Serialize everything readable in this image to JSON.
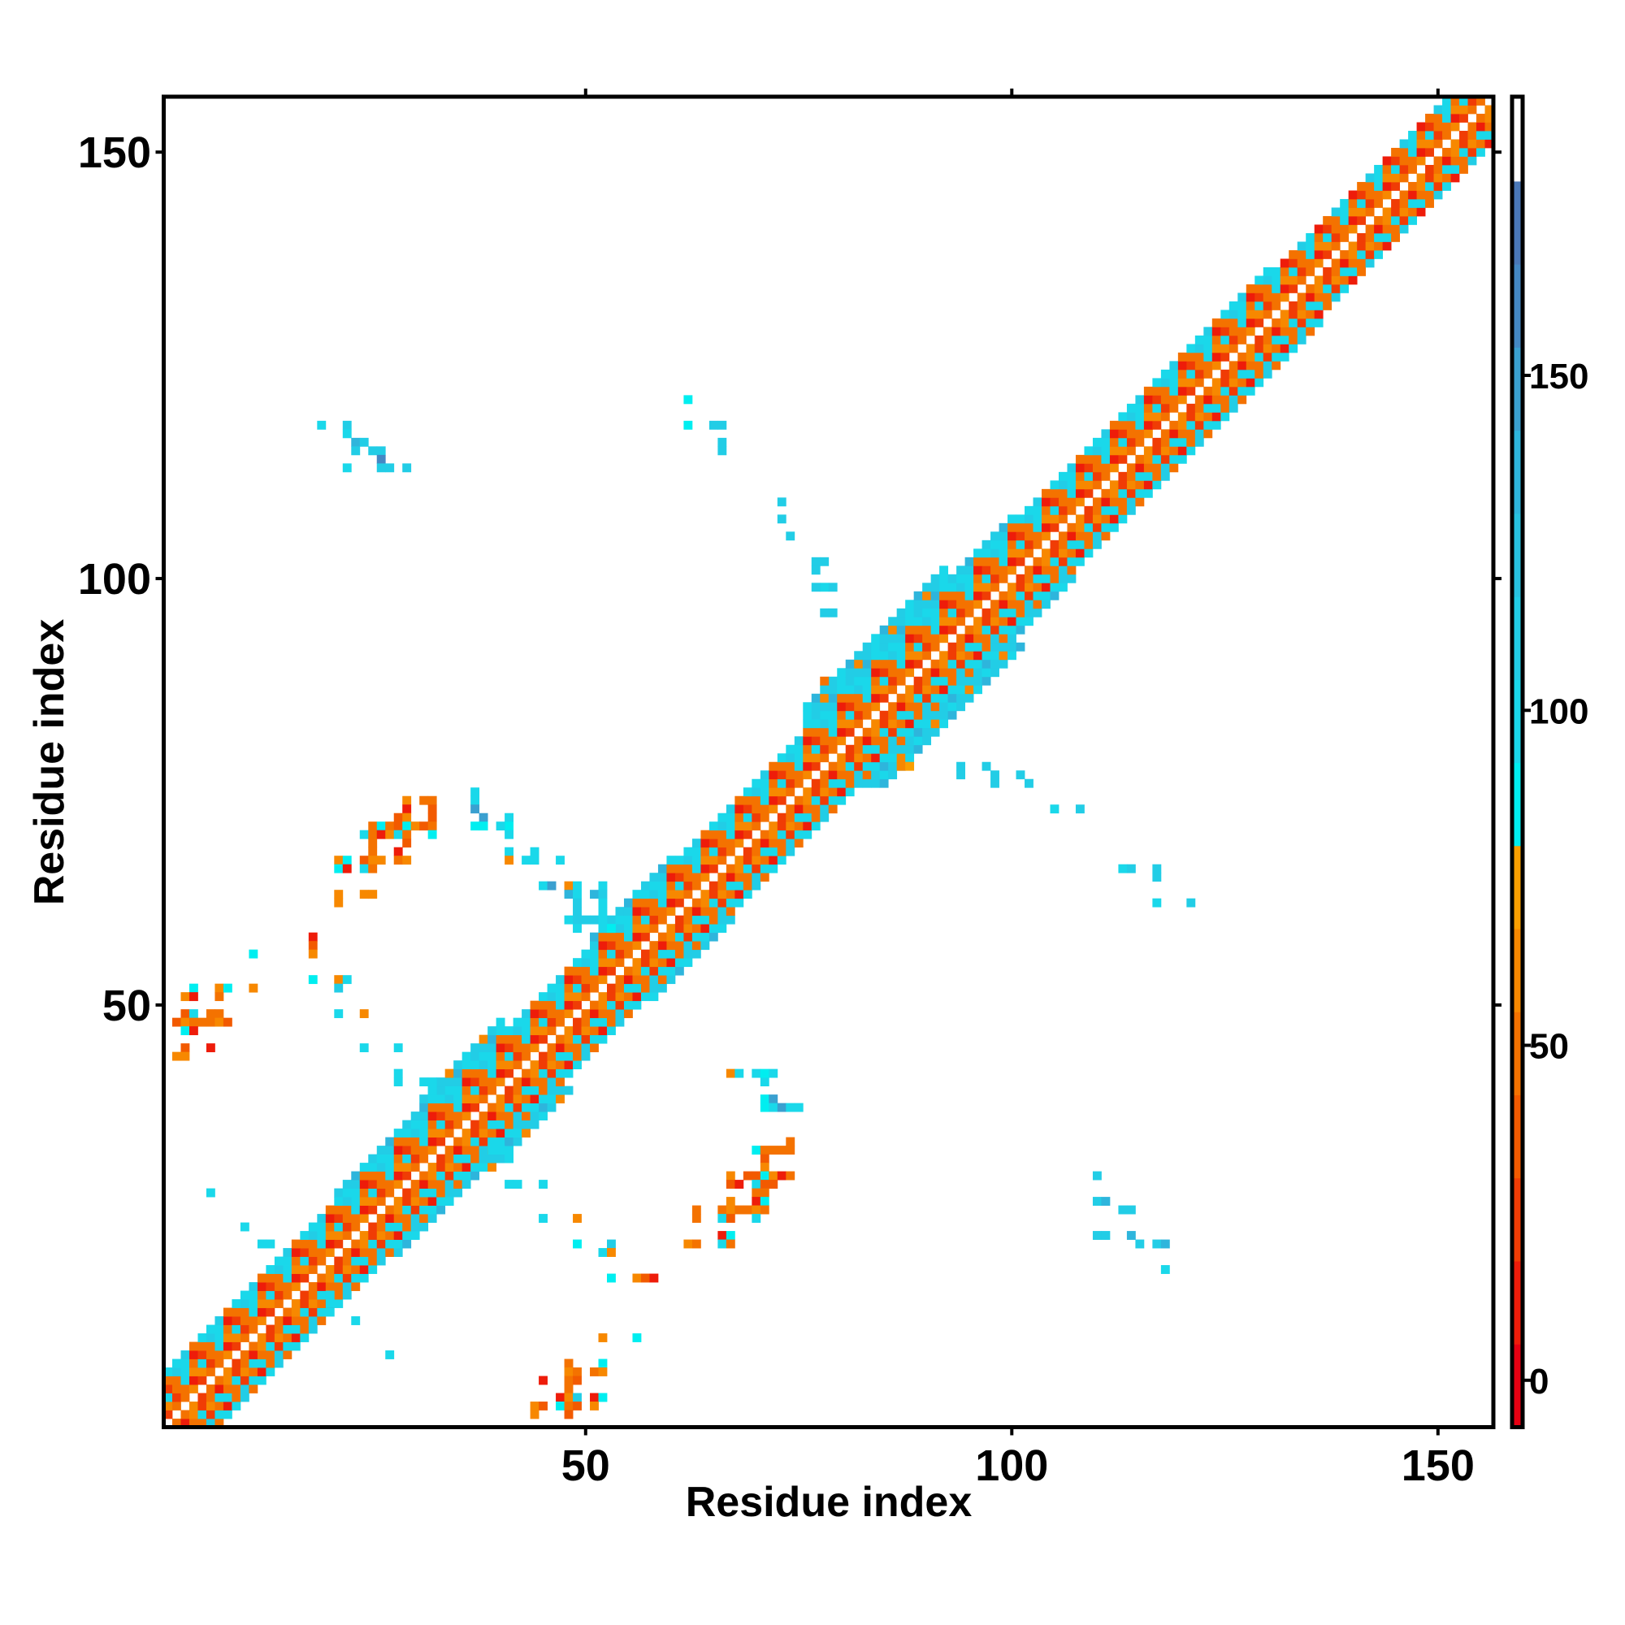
{
  "chart_data": {
    "type": "heatmap",
    "title": "",
    "xlabel": "Residue index",
    "ylabel": "Residue index",
    "xlim": [
      0.5,
      156.5
    ],
    "ylim": [
      0.5,
      156.5
    ],
    "x_ticks": [
      {
        "value": 50,
        "label": "50"
      },
      {
        "value": 100,
        "label": "100"
      },
      {
        "value": 150,
        "label": "150"
      }
    ],
    "y_ticks": [
      {
        "value": 50,
        "label": "50"
      },
      {
        "value": 100,
        "label": "100"
      },
      {
        "value": 150,
        "label": "150"
      }
    ],
    "grid": false,
    "colorbar": {
      "range": [
        -7,
        191.6
      ],
      "bin_width": 12.4,
      "colors": [
        "#e60012",
        "#ee1c0a",
        "#f03c05",
        "#f25a00",
        "#f47200",
        "#f78800",
        "#fa9f00",
        "#00eef0",
        "#1ad8ea",
        "#22cde6",
        "#28c2e0",
        "#2eb5dc",
        "#3aa0d0",
        "#4488c4",
        "#4a78b8",
        "#ffffff"
      ],
      "ticks": [
        {
          "value": 0,
          "label": "0"
        },
        {
          "value": 50,
          "label": "50"
        },
        {
          "value": 100,
          "label": "100"
        },
        {
          "value": 150,
          "label": "150"
        }
      ],
      "placement": "right"
    },
    "n_residues": 156,
    "diagonal_band": {
      "segments": [
        [
          1,
          20,
          6
        ],
        [
          21,
          30,
          7
        ],
        [
          31,
          40,
          8
        ],
        [
          41,
          50,
          6
        ],
        [
          51,
          60,
          7
        ],
        [
          61,
          75,
          6
        ],
        [
          76,
          92,
          9
        ],
        [
          93,
          100,
          7
        ],
        [
          101,
          130,
          6
        ],
        [
          131,
          156,
          5
        ]
      ],
      "offset_values": [
        [
          45,
          60,
          30,
          45
        ],
        [
          25,
          45,
          10,
          55
        ],
        [
          95,
          45,
          100,
          65
        ],
        [
          50,
          25,
          45,
          95
        ],
        [
          100,
          15,
          50,
          110
        ],
        [
          100,
          115,
          45,
          95
        ],
        [
          105,
          110,
          140,
          95
        ],
        [
          100,
          115,
          60,
          110
        ],
        [
          110,
          95,
          140,
          110
        ]
      ]
    },
    "cells": [
      [
        19,
        118,
        95
      ],
      [
        22,
        118,
        110
      ],
      [
        22,
        117,
        95
      ],
      [
        23,
        116,
        140
      ],
      [
        24,
        116,
        110
      ],
      [
        25,
        115,
        110
      ],
      [
        26,
        115,
        110
      ],
      [
        23,
        115,
        110
      ],
      [
        26,
        114,
        165
      ],
      [
        22,
        113,
        95
      ],
      [
        26,
        113,
        110
      ],
      [
        27,
        113,
        110
      ],
      [
        29,
        113,
        110
      ],
      [
        62,
        121,
        90
      ],
      [
        62,
        118,
        90
      ],
      [
        65,
        118,
        110
      ],
      [
        66,
        118,
        110
      ],
      [
        66,
        116,
        110
      ],
      [
        66,
        115,
        110
      ],
      [
        73,
        109,
        110
      ],
      [
        73,
        107,
        110
      ],
      [
        74,
        105,
        110
      ],
      [
        77,
        102,
        110
      ],
      [
        78,
        102,
        110
      ],
      [
        77,
        101,
        110
      ],
      [
        78,
        99,
        95
      ],
      [
        79,
        99,
        110
      ],
      [
        77,
        99,
        110
      ],
      [
        78,
        96,
        110
      ],
      [
        79,
        96,
        110
      ],
      [
        78,
        88,
        50
      ],
      [
        87,
        78,
        55
      ],
      [
        88,
        78,
        70
      ],
      [
        94,
        78,
        110
      ],
      [
        94,
        77,
        110
      ],
      [
        97,
        78,
        110
      ],
      [
        98,
        77,
        110
      ],
      [
        98,
        76,
        110
      ],
      [
        101,
        77,
        110
      ],
      [
        102,
        76,
        110
      ],
      [
        105,
        73,
        95
      ],
      [
        108,
        73,
        110
      ],
      [
        113,
        66,
        95
      ],
      [
        114,
        66,
        110
      ],
      [
        117,
        66,
        110
      ],
      [
        117,
        65,
        110
      ],
      [
        117,
        62,
        95
      ],
      [
        121,
        62,
        110
      ],
      [
        110,
        30,
        110
      ],
      [
        110,
        27,
        110
      ],
      [
        111,
        27,
        140
      ],
      [
        113,
        26,
        110
      ],
      [
        114,
        26,
        110
      ],
      [
        110,
        23,
        110
      ],
      [
        111,
        23,
        110
      ],
      [
        114,
        23,
        140
      ],
      [
        115,
        22,
        110
      ],
      [
        117,
        22,
        110
      ],
      [
        118,
        22,
        140
      ],
      [
        118,
        19,
        95
      ],
      [
        29,
        74,
        55
      ],
      [
        31,
        74,
        50
      ],
      [
        32,
        74,
        50
      ],
      [
        29,
        73,
        10
      ],
      [
        32,
        73,
        35
      ],
      [
        28,
        72,
        35
      ],
      [
        29,
        72,
        65
      ],
      [
        32,
        72,
        35
      ],
      [
        25,
        71,
        50
      ],
      [
        26,
        71,
        90
      ],
      [
        27,
        71,
        45
      ],
      [
        28,
        71,
        35
      ],
      [
        29,
        71,
        90
      ],
      [
        30,
        71,
        65
      ],
      [
        31,
        71,
        35
      ],
      [
        32,
        71,
        50
      ],
      [
        24,
        70,
        95
      ],
      [
        25,
        70,
        50
      ],
      [
        26,
        70,
        10
      ],
      [
        27,
        70,
        55
      ],
      [
        28,
        70,
        95
      ],
      [
        29,
        70,
        50
      ],
      [
        32,
        70,
        90
      ],
      [
        25,
        69,
        50
      ],
      [
        29,
        69,
        35
      ],
      [
        25,
        68,
        50
      ],
      [
        28,
        68,
        15
      ],
      [
        21,
        67,
        55
      ],
      [
        22,
        67,
        90
      ],
      [
        24,
        67,
        35
      ],
      [
        25,
        67,
        65
      ],
      [
        26,
        67,
        65
      ],
      [
        28,
        67,
        50
      ],
      [
        29,
        67,
        65
      ],
      [
        21,
        66,
        90
      ],
      [
        22,
        66,
        10
      ],
      [
        24,
        66,
        95
      ],
      [
        25,
        66,
        50
      ],
      [
        21,
        63,
        55
      ],
      [
        24,
        63,
        55
      ],
      [
        25,
        63,
        55
      ],
      [
        21,
        62,
        65
      ],
      [
        37,
        75,
        100
      ],
      [
        37,
        74,
        100
      ],
      [
        37,
        73,
        150
      ],
      [
        38,
        72,
        150
      ],
      [
        37,
        71,
        90
      ],
      [
        38,
        71,
        90
      ],
      [
        41,
        72,
        100
      ],
      [
        41,
        71,
        90
      ],
      [
        40,
        71,
        100
      ],
      [
        41,
        70,
        100
      ],
      [
        41,
        68,
        100
      ],
      [
        41,
        67,
        65
      ],
      [
        44,
        68,
        100
      ],
      [
        44,
        67,
        100
      ],
      [
        43,
        67,
        100
      ],
      [
        47,
        67,
        100
      ],
      [
        45,
        64,
        100
      ],
      [
        46,
        64,
        150
      ],
      [
        48,
        64,
        65
      ],
      [
        49,
        64,
        100
      ],
      [
        52,
        64,
        100
      ],
      [
        48,
        63,
        130
      ],
      [
        49,
        63,
        100
      ],
      [
        51,
        63,
        140
      ],
      [
        52,
        63,
        110
      ],
      [
        49,
        62,
        110
      ],
      [
        52,
        62,
        100
      ],
      [
        49,
        61,
        110
      ],
      [
        52,
        61,
        100
      ],
      [
        48,
        60,
        100
      ],
      [
        49,
        60,
        110
      ],
      [
        50,
        60,
        110
      ],
      [
        51,
        60,
        110
      ],
      [
        52,
        60,
        100
      ],
      [
        49,
        59,
        100
      ],
      [
        52,
        59,
        100
      ],
      [
        53,
        59,
        90
      ],
      [
        11,
        56,
        90
      ],
      [
        18,
        58,
        10
      ],
      [
        18,
        57,
        35
      ],
      [
        18,
        56,
        65
      ],
      [
        18,
        53,
        90
      ],
      [
        21,
        53,
        65
      ],
      [
        22,
        53,
        100
      ],
      [
        21,
        52,
        110
      ],
      [
        4,
        52,
        90
      ],
      [
        7,
        52,
        55
      ],
      [
        8,
        52,
        90
      ],
      [
        11,
        52,
        55
      ],
      [
        3,
        51,
        65
      ],
      [
        4,
        51,
        10
      ],
      [
        7,
        51,
        50
      ],
      [
        3,
        49,
        35
      ],
      [
        4,
        49,
        100
      ],
      [
        6,
        49,
        45
      ],
      [
        7,
        49,
        50
      ],
      [
        2,
        48,
        35
      ],
      [
        3,
        48,
        55
      ],
      [
        4,
        48,
        50
      ],
      [
        5,
        48,
        45
      ],
      [
        6,
        48,
        50
      ],
      [
        7,
        48,
        55
      ],
      [
        8,
        48,
        40
      ],
      [
        3,
        47,
        90
      ],
      [
        4,
        47,
        10
      ],
      [
        3,
        45,
        35
      ],
      [
        6,
        45,
        10
      ],
      [
        2,
        44,
        65
      ],
      [
        3,
        44,
        65
      ],
      [
        21,
        49,
        100
      ],
      [
        24,
        49,
        65
      ],
      [
        24,
        45,
        100
      ],
      [
        28,
        45,
        100
      ],
      [
        28,
        42,
        100
      ],
      [
        28,
        41,
        100
      ],
      [
        31,
        41,
        100
      ],
      [
        32,
        41,
        100
      ],
      [
        32,
        40,
        100
      ],
      [
        6,
        28,
        100
      ],
      [
        10,
        24,
        100
      ],
      [
        12,
        22,
        100
      ],
      [
        13,
        22,
        100
      ],
      [
        20,
        16,
        100
      ],
      [
        20,
        15,
        100
      ],
      [
        23,
        13,
        100
      ],
      [
        27,
        9,
        100
      ],
      [
        39,
        33,
        100
      ],
      [
        40,
        33,
        100
      ],
      [
        41,
        32,
        100
      ],
      [
        41,
        29,
        100
      ],
      [
        42,
        29,
        100
      ],
      [
        45,
        29,
        100
      ],
      [
        45,
        25,
        100
      ],
      [
        49,
        25,
        65
      ],
      [
        49,
        22,
        90
      ],
      [
        53,
        22,
        110
      ],
      [
        52,
        21,
        100
      ],
      [
        53,
        21,
        65
      ],
      [
        53,
        18,
        90
      ],
      [
        56,
        18,
        55
      ],
      [
        57,
        18,
        35
      ],
      [
        58,
        18,
        10
      ],
      [
        52,
        11,
        55
      ],
      [
        56,
        11,
        90
      ],
      [
        48,
        8,
        50
      ],
      [
        52,
        8,
        90
      ],
      [
        48,
        7,
        55
      ],
      [
        49,
        7,
        50
      ],
      [
        51,
        7,
        45
      ],
      [
        52,
        7,
        55
      ],
      [
        45,
        6,
        10
      ],
      [
        48,
        6,
        50
      ],
      [
        49,
        6,
        35
      ],
      [
        48,
        5,
        50
      ],
      [
        47,
        4,
        10
      ],
      [
        48,
        4,
        65
      ],
      [
        49,
        4,
        110
      ],
      [
        51,
        4,
        10
      ],
      [
        52,
        4,
        90
      ],
      [
        44,
        3,
        65
      ],
      [
        45,
        3,
        35
      ],
      [
        47,
        3,
        90
      ],
      [
        48,
        3,
        50
      ],
      [
        49,
        3,
        35
      ],
      [
        51,
        3,
        65
      ],
      [
        44,
        2,
        65
      ],
      [
        48,
        2,
        35
      ],
      [
        71,
        41,
        100
      ],
      [
        71,
        39,
        90
      ],
      [
        72,
        39,
        150
      ],
      [
        71,
        38,
        90
      ],
      [
        72,
        38,
        100
      ],
      [
        73,
        38,
        150
      ],
      [
        74,
        38,
        100
      ],
      [
        75,
        38,
        100
      ],
      [
        67,
        42,
        65
      ],
      [
        68,
        42,
        100
      ],
      [
        70,
        42,
        100
      ],
      [
        71,
        42,
        90
      ],
      [
        72,
        42,
        100
      ],
      [
        74,
        34,
        50
      ],
      [
        70,
        33,
        90
      ],
      [
        71,
        33,
        45
      ],
      [
        72,
        33,
        45
      ],
      [
        73,
        33,
        50
      ],
      [
        74,
        33,
        50
      ],
      [
        71,
        32,
        35
      ],
      [
        71,
        31,
        65
      ],
      [
        67,
        30,
        65
      ],
      [
        69,
        30,
        35
      ],
      [
        70,
        30,
        35
      ],
      [
        71,
        30,
        90
      ],
      [
        72,
        30,
        60
      ],
      [
        73,
        30,
        10
      ],
      [
        74,
        30,
        50
      ],
      [
        67,
        29,
        35
      ],
      [
        68,
        29,
        10
      ],
      [
        70,
        29,
        100
      ],
      [
        71,
        29,
        35
      ],
      [
        72,
        29,
        40
      ],
      [
        70,
        28,
        50
      ],
      [
        71,
        28,
        45
      ],
      [
        67,
        27,
        65
      ],
      [
        70,
        27,
        10
      ],
      [
        71,
        27,
        90
      ],
      [
        63,
        26,
        50
      ],
      [
        66,
        26,
        50
      ],
      [
        67,
        26,
        65
      ],
      [
        68,
        26,
        45
      ],
      [
        69,
        26,
        45
      ],
      [
        70,
        26,
        60
      ],
      [
        71,
        26,
        45
      ],
      [
        63,
        25,
        50
      ],
      [
        66,
        25,
        100
      ],
      [
        67,
        25,
        35
      ],
      [
        70,
        25,
        100
      ],
      [
        66,
        23,
        10
      ],
      [
        67,
        23,
        90
      ],
      [
        62,
        22,
        65
      ],
      [
        63,
        22,
        50
      ],
      [
        66,
        22,
        100
      ],
      [
        67,
        22,
        50
      ]
    ]
  }
}
